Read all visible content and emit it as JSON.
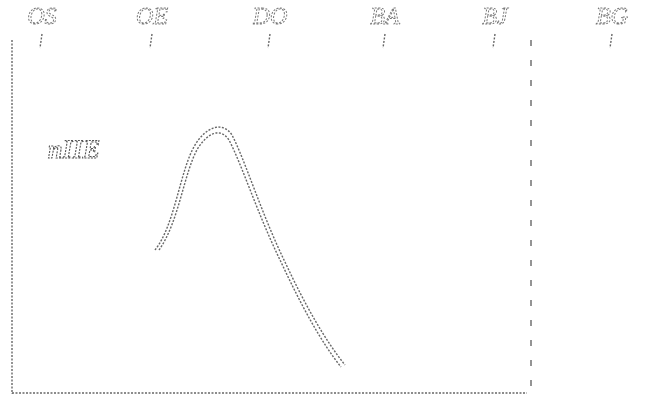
{
  "labels": [
    "OS",
    "OE",
    "DO",
    "BA",
    "BJ",
    "BG"
  ],
  "note": "nIIE"
}
